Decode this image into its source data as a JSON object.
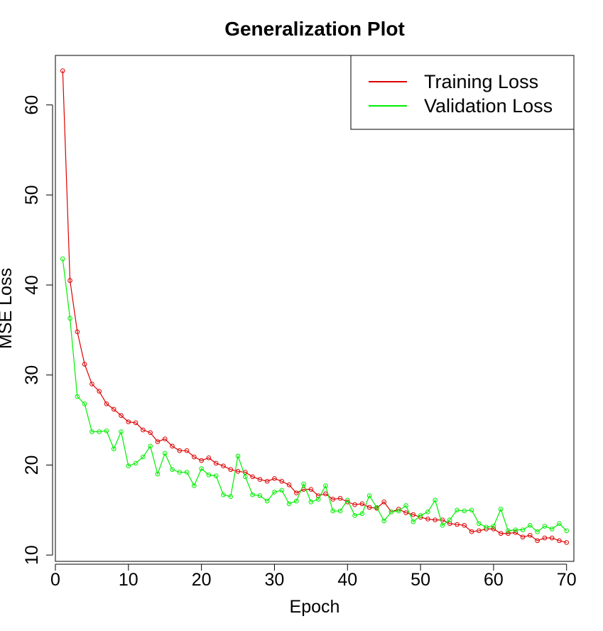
{
  "chart_data": {
    "type": "line",
    "title": "Generalization Plot",
    "xlabel": "Epoch",
    "ylabel": "MSE Loss",
    "xlim": [
      0,
      71
    ],
    "ylim": [
      9.3,
      65.5
    ],
    "x_ticks": [
      0,
      10,
      20,
      30,
      40,
      50,
      60,
      70
    ],
    "y_ticks": [
      10,
      20,
      30,
      40,
      50,
      60
    ],
    "grid": false,
    "legend_position": "top-right",
    "x": [
      1,
      2,
      3,
      4,
      5,
      6,
      7,
      8,
      9,
      10,
      11,
      12,
      13,
      14,
      15,
      16,
      17,
      18,
      19,
      20,
      21,
      22,
      23,
      24,
      25,
      26,
      27,
      28,
      29,
      30,
      31,
      32,
      33,
      34,
      35,
      36,
      37,
      38,
      39,
      40,
      41,
      42,
      43,
      44,
      45,
      46,
      47,
      48,
      49,
      50,
      51,
      52,
      53,
      54,
      55,
      56,
      57,
      58,
      59,
      60,
      61,
      62,
      63,
      64,
      65,
      66,
      67,
      68,
      69,
      70
    ],
    "series": [
      {
        "name": "Training Loss",
        "color": "#DD0000",
        "values": [
          63.8,
          40.5,
          34.8,
          31.2,
          29.0,
          28.2,
          26.8,
          26.2,
          25.5,
          24.8,
          24.7,
          23.9,
          23.6,
          22.6,
          22.9,
          22.1,
          21.6,
          21.6,
          20.9,
          20.5,
          20.8,
          20.2,
          19.9,
          19.5,
          19.3,
          19.2,
          18.7,
          18.4,
          18.2,
          18.5,
          18.2,
          17.8,
          16.9,
          17.3,
          17.3,
          16.6,
          16.8,
          16.2,
          16.3,
          15.9,
          15.6,
          15.7,
          15.3,
          15.2,
          15.9,
          14.8,
          15.1,
          14.7,
          14.5,
          14.2,
          14.0,
          13.9,
          13.9,
          13.5,
          13.4,
          13.3,
          12.6,
          12.7,
          12.9,
          12.9,
          12.4,
          12.4,
          12.5,
          12.0,
          12.2,
          11.6,
          11.9,
          11.9,
          11.6,
          11.4
        ]
      },
      {
        "name": "Validation Loss",
        "color": "#00EE00",
        "values": [
          42.9,
          36.3,
          27.6,
          26.8,
          23.7,
          23.7,
          23.8,
          21.8,
          23.7,
          19.9,
          20.2,
          20.9,
          22.1,
          19.0,
          21.3,
          19.5,
          19.2,
          19.2,
          17.7,
          19.6,
          18.9,
          18.8,
          16.7,
          16.5,
          21.0,
          18.7,
          16.7,
          16.6,
          16.0,
          17.0,
          17.2,
          15.7,
          16.0,
          17.9,
          15.9,
          16.2,
          17.7,
          14.9,
          14.9,
          16.1,
          14.4,
          14.6,
          16.6,
          15.3,
          13.8,
          14.8,
          14.9,
          15.5,
          13.7,
          14.4,
          14.8,
          16.1,
          13.3,
          13.9,
          15.0,
          14.9,
          15.0,
          13.5,
          13.1,
          13.2,
          15.1,
          12.7,
          12.8,
          12.8,
          13.3,
          12.6,
          13.2,
          12.9,
          13.5,
          12.7
        ]
      }
    ]
  }
}
